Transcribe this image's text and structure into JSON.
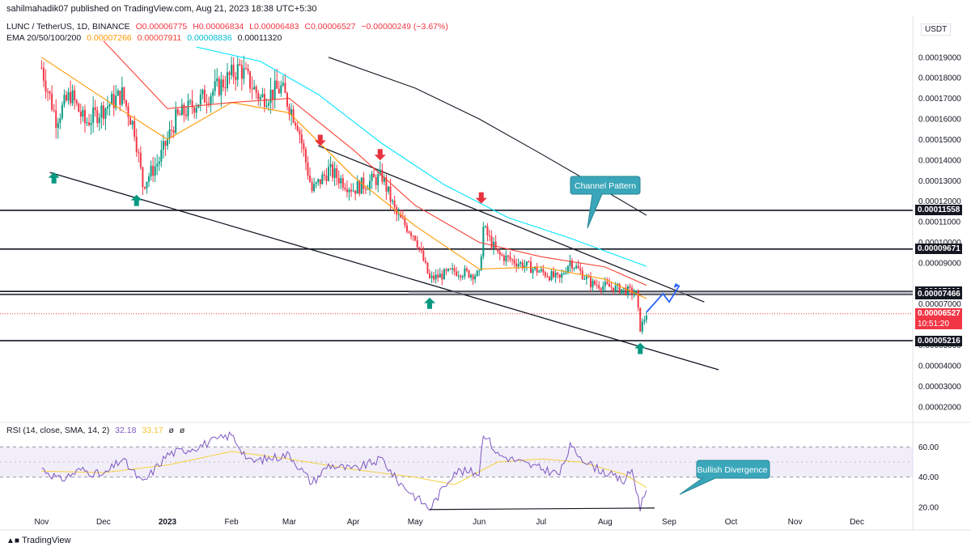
{
  "header": {
    "publisher": "sahilmahadik07 published on TradingView.com, Aug 21, 2023 18:38 UTC+5:30"
  },
  "legend": {
    "symbol": "LUNC / TetherUS, 1D, BINANCE",
    "open": "O0.00006775",
    "high": "H0.00006834",
    "low": "L0.00006483",
    "close": "C0.00006527",
    "change": "−0.00000249 (−3.67%)",
    "ema_label": "EMA 20/50/100/200",
    "ema20": "0.00007266",
    "ema50": "0.00007911",
    "ema100": "0.00008836",
    "ema200": "0.00011320",
    "rsi_label": "RSI (14, close, SMA, 14, 2)",
    "rsi_value": "32.18",
    "rsi_sma": "33.17",
    "rsi_extra1": "ø",
    "rsi_extra2": "ø"
  },
  "currency": "USDT",
  "colors": {
    "up": "#089981",
    "down": "#f23645",
    "ema20": "#ff9800",
    "ema50": "#f44336",
    "ema100": "#00e5ff",
    "ema200": "#131722",
    "rsi": "#7e57c2",
    "rsi_ma": "#f4d03f",
    "projection": "#2962ff",
    "callout": "#3aa6b9"
  },
  "annotations": {
    "channel_pattern": "Channel Pattern",
    "bullish_divergence": "Bullish Divergence"
  },
  "price_labels": [
    {
      "text": "0.00011558",
      "style": "level"
    },
    {
      "text": "0.00009671",
      "style": "level"
    },
    {
      "text": "0.00007610",
      "style": "level"
    },
    {
      "text": "0.00007466",
      "style": "level"
    },
    {
      "text": "0.00006527",
      "style": "current"
    },
    {
      "text": "10:51:20",
      "style": "countdown"
    },
    {
      "text": "0.00005216",
      "style": "level"
    }
  ],
  "footer": "TradingView",
  "chart_data": {
    "type": "candlestick",
    "symbol": "LUNC / TetherUS",
    "timeframe": "1D",
    "exchange": "BINANCE",
    "x_tick_labels": [
      "Nov",
      "Dec",
      "2023",
      "Feb",
      "Mar",
      "Apr",
      "May",
      "Jun",
      "Jul",
      "Aug",
      "Sep",
      "Oct",
      "Nov",
      "Dec"
    ],
    "y_tick_labels": [
      "0.00019000",
      "0.00018000",
      "0.00017000",
      "0.00016000",
      "0.00015000",
      "0.00014000",
      "0.00013000",
      "0.00012000",
      "0.00011000",
      "0.00010000",
      "0.00009000",
      "0.00007000",
      "0.00006000",
      "0.00005000",
      "0.00004000",
      "0.00003000",
      "0.00002000"
    ],
    "ylim": [
      1.4e-05,
      0.00021
    ],
    "horizontal_levels": [
      0.00011558,
      9.671e-05,
      7.61e-05,
      7.466e-05,
      5.216e-05
    ],
    "current_price": 6.527e-05,
    "close_path": [
      {
        "x": "2022-11-01",
        "y": 0.000185
      },
      {
        "x": "2022-11-08",
        "y": 0.00016
      },
      {
        "x": "2022-11-15",
        "y": 0.000172
      },
      {
        "x": "2022-11-22",
        "y": 0.000158
      },
      {
        "x": "2022-12-01",
        "y": 0.000165
      },
      {
        "x": "2022-12-10",
        "y": 0.000172
      },
      {
        "x": "2022-12-16",
        "y": 0.000155
      },
      {
        "x": "2022-12-20",
        "y": 0.000128
      },
      {
        "x": "2022-12-28",
        "y": 0.00014
      },
      {
        "x": "2023-01-05",
        "y": 0.00016
      },
      {
        "x": "2023-01-15",
        "y": 0.000168
      },
      {
        "x": "2023-01-25",
        "y": 0.000175
      },
      {
        "x": "2023-02-05",
        "y": 0.000185
      },
      {
        "x": "2023-02-15",
        "y": 0.00017
      },
      {
        "x": "2023-02-25",
        "y": 0.000175
      },
      {
        "x": "2023-03-05",
        "y": 0.000158
      },
      {
        "x": "2023-03-12",
        "y": 0.000125
      },
      {
        "x": "2023-03-20",
        "y": 0.000135
      },
      {
        "x": "2023-04-01",
        "y": 0.000126
      },
      {
        "x": "2023-04-15",
        "y": 0.000132
      },
      {
        "x": "2023-04-22",
        "y": 0.000113
      },
      {
        "x": "2023-05-01",
        "y": 0.000103
      },
      {
        "x": "2023-05-08",
        "y": 8.2e-05
      },
      {
        "x": "2023-05-20",
        "y": 8.6e-05
      },
      {
        "x": "2023-06-01",
        "y": 8.4e-05
      },
      {
        "x": "2023-06-03",
        "y": 0.000107
      },
      {
        "x": "2023-06-10",
        "y": 9.4e-05
      },
      {
        "x": "2023-06-25",
        "y": 8.8e-05
      },
      {
        "x": "2023-07-10",
        "y": 8.2e-05
      },
      {
        "x": "2023-07-15",
        "y": 9.1e-05
      },
      {
        "x": "2023-07-25",
        "y": 8e-05
      },
      {
        "x": "2023-08-10",
        "y": 7.7e-05
      },
      {
        "x": "2023-08-16",
        "y": 7.5e-05
      },
      {
        "x": "2023-08-18",
        "y": 5.8e-05
      },
      {
        "x": "2023-08-21",
        "y": 6.527e-05
      }
    ],
    "ema_series": [
      {
        "name": "EMA 20",
        "last": 7.266e-05,
        "points": [
          {
            "x": "2022-11-01",
            "y": 0.00019
          },
          {
            "x": "2022-12-01",
            "y": 0.00017
          },
          {
            "x": "2023-01-01",
            "y": 0.00015
          },
          {
            "x": "2023-02-01",
            "y": 0.000168
          },
          {
            "x": "2023-03-01",
            "y": 0.000163
          },
          {
            "x": "2023-04-01",
            "y": 0.000132
          },
          {
            "x": "2023-05-01",
            "y": 0.000108
          },
          {
            "x": "2023-06-01",
            "y": 8.7e-05
          },
          {
            "x": "2023-07-01",
            "y": 8.8e-05
          },
          {
            "x": "2023-08-01",
            "y": 8.2e-05
          },
          {
            "x": "2023-08-21",
            "y": 7.266e-05
          }
        ]
      },
      {
        "name": "EMA 50",
        "last": 7.911e-05,
        "points": [
          {
            "x": "2022-12-01",
            "y": 0.000198
          },
          {
            "x": "2023-01-01",
            "y": 0.000165
          },
          {
            "x": "2023-02-01",
            "y": 0.000168
          },
          {
            "x": "2023-03-01",
            "y": 0.00017
          },
          {
            "x": "2023-04-01",
            "y": 0.000145
          },
          {
            "x": "2023-05-01",
            "y": 0.000118
          },
          {
            "x": "2023-06-01",
            "y": 0.0001
          },
          {
            "x": "2023-07-01",
            "y": 9.3e-05
          },
          {
            "x": "2023-08-01",
            "y": 8.8e-05
          },
          {
            "x": "2023-08-21",
            "y": 7.911e-05
          }
        ]
      },
      {
        "name": "EMA 100",
        "last": 8.836e-05,
        "points": [
          {
            "x": "2023-01-15",
            "y": 0.000195
          },
          {
            "x": "2023-02-15",
            "y": 0.000188
          },
          {
            "x": "2023-03-15",
            "y": 0.000172
          },
          {
            "x": "2023-04-15",
            "y": 0.000148
          },
          {
            "x": "2023-05-15",
            "y": 0.000128
          },
          {
            "x": "2023-06-15",
            "y": 0.000112
          },
          {
            "x": "2023-07-15",
            "y": 0.000102
          },
          {
            "x": "2023-08-21",
            "y": 8.836e-05
          }
        ]
      },
      {
        "name": "EMA 200",
        "last": 0.0001132,
        "points": [
          {
            "x": "2023-03-20",
            "y": 0.00019
          },
          {
            "x": "2023-05-01",
            "y": 0.000175
          },
          {
            "x": "2023-06-01",
            "y": 0.00016
          },
          {
            "x": "2023-07-01",
            "y": 0.000143
          },
          {
            "x": "2023-08-01",
            "y": 0.000125
          },
          {
            "x": "2023-08-21",
            "y": 0.0001132
          }
        ]
      }
    ],
    "channel": {
      "upper": [
        {
          "x": "2023-03-15",
          "y": 0.000147
        },
        {
          "x": "2023-09-18",
          "y": 7.1e-05
        }
      ],
      "lower": [
        {
          "x": "2022-11-05",
          "y": 0.000134
        },
        {
          "x": "2023-09-25",
          "y": 3.8e-05
        }
      ]
    },
    "projection": [
      {
        "x": "2023-08-21",
        "y": 6.6e-05
      },
      {
        "x": "2023-08-29",
        "y": 7.5e-05
      },
      {
        "x": "2023-09-01",
        "y": 7.1e-05
      },
      {
        "x": "2023-09-06",
        "y": 7.9e-05
      }
    ],
    "markers": {
      "up": [
        {
          "x": "2022-11-07",
          "y": 0.000131
        },
        {
          "x": "2022-12-17",
          "y": 0.00012
        },
        {
          "x": "2023-05-08",
          "y": 7e-05
        },
        {
          "x": "2023-08-18",
          "y": 4.8e-05
        }
      ],
      "down": [
        {
          "x": "2023-03-16",
          "y": 0.00015
        },
        {
          "x": "2023-04-14",
          "y": 0.000143
        },
        {
          "x": "2023-06-02",
          "y": 0.000122
        }
      ]
    },
    "rsi": {
      "y_tick_labels": [
        "60.00",
        "40.00",
        "20.00"
      ],
      "ylim": [
        13,
        72
      ],
      "band": [
        40,
        60
      ],
      "mid": 50,
      "values": [
        {
          "x": "2022-11-01",
          "y": 46
        },
        {
          "x": "2022-11-10",
          "y": 38
        },
        {
          "x": "2022-11-20",
          "y": 45
        },
        {
          "x": "2022-12-01",
          "y": 41
        },
        {
          "x": "2022-12-10",
          "y": 52
        },
        {
          "x": "2022-12-20",
          "y": 36
        },
        {
          "x": "2023-01-01",
          "y": 55
        },
        {
          "x": "2023-01-15",
          "y": 60
        },
        {
          "x": "2023-02-01",
          "y": 68
        },
        {
          "x": "2023-02-10",
          "y": 50
        },
        {
          "x": "2023-03-01",
          "y": 55
        },
        {
          "x": "2023-03-12",
          "y": 36
        },
        {
          "x": "2023-03-20",
          "y": 48
        },
        {
          "x": "2023-04-01",
          "y": 45
        },
        {
          "x": "2023-04-15",
          "y": 52
        },
        {
          "x": "2023-04-22",
          "y": 38
        },
        {
          "x": "2023-05-08",
          "y": 19
        },
        {
          "x": "2023-05-20",
          "y": 44
        },
        {
          "x": "2023-06-01",
          "y": 43
        },
        {
          "x": "2023-06-03",
          "y": 70
        },
        {
          "x": "2023-06-10",
          "y": 55
        },
        {
          "x": "2023-06-25",
          "y": 48
        },
        {
          "x": "2023-07-10",
          "y": 42
        },
        {
          "x": "2023-07-15",
          "y": 60
        },
        {
          "x": "2023-07-25",
          "y": 48
        },
        {
          "x": "2023-08-10",
          "y": 37
        },
        {
          "x": "2023-08-14",
          "y": 45
        },
        {
          "x": "2023-08-18",
          "y": 20
        },
        {
          "x": "2023-08-21",
          "y": 32.18
        }
      ],
      "sma": [
        {
          "x": "2022-11-01",
          "y": 44
        },
        {
          "x": "2022-12-01",
          "y": 43
        },
        {
          "x": "2023-01-01",
          "y": 48
        },
        {
          "x": "2023-02-01",
          "y": 57
        },
        {
          "x": "2023-03-01",
          "y": 52
        },
        {
          "x": "2023-04-01",
          "y": 45
        },
        {
          "x": "2023-05-01",
          "y": 40
        },
        {
          "x": "2023-05-20",
          "y": 35
        },
        {
          "x": "2023-06-10",
          "y": 50
        },
        {
          "x": "2023-07-01",
          "y": 52
        },
        {
          "x": "2023-07-20",
          "y": 50
        },
        {
          "x": "2023-08-10",
          "y": 42
        },
        {
          "x": "2023-08-21",
          "y": 33.17
        }
      ],
      "divergence_line": [
        {
          "x": "2023-05-08",
          "y": 18.5
        },
        {
          "x": "2023-08-25",
          "y": 19.5
        }
      ]
    }
  }
}
